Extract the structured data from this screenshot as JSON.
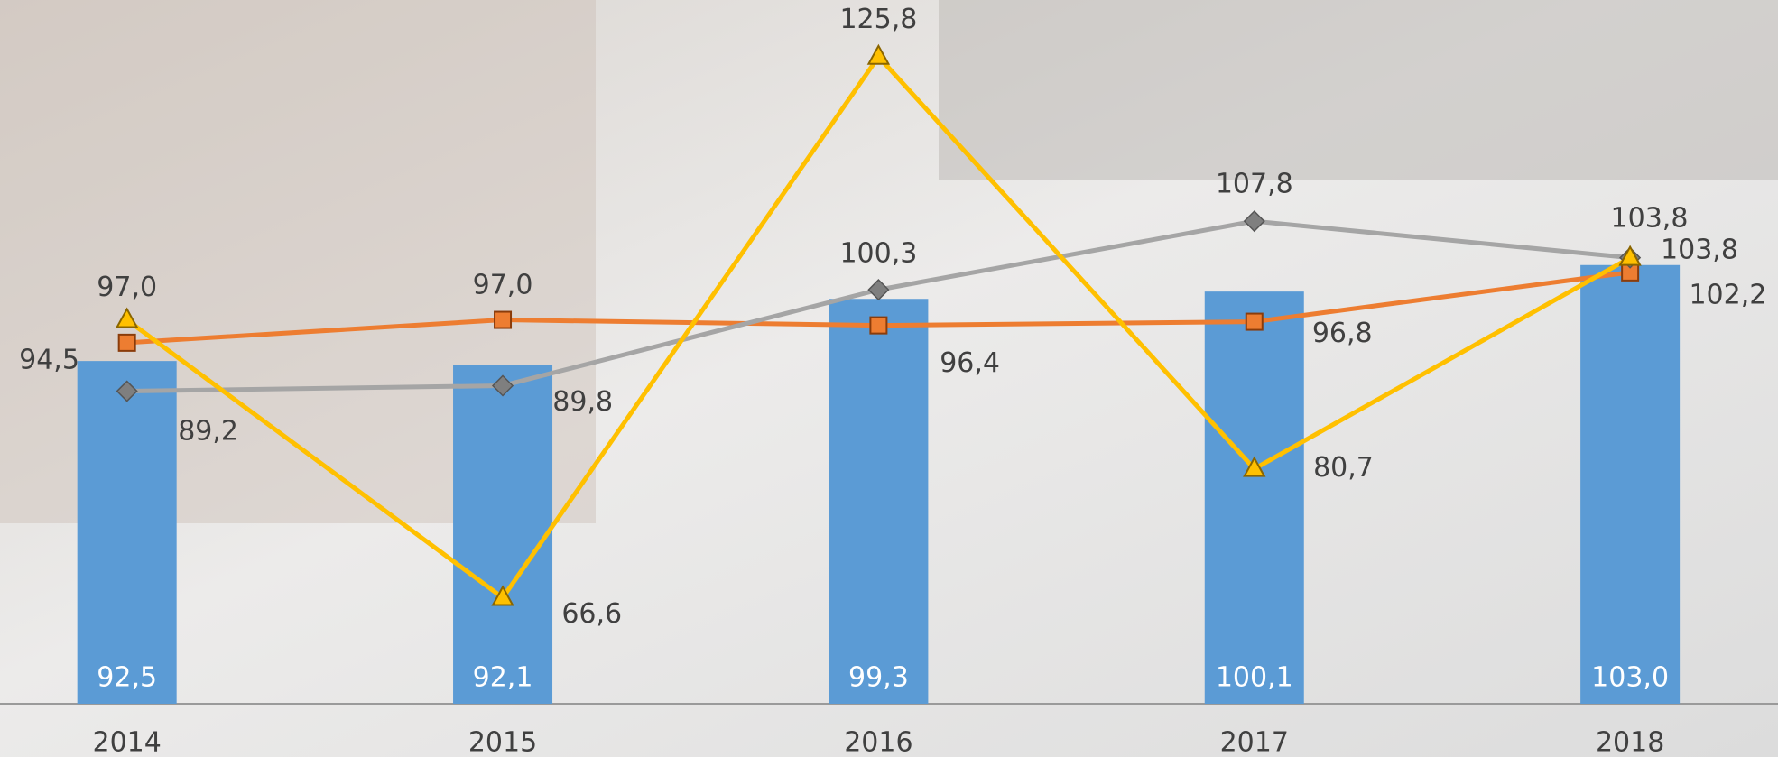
{
  "chart_data": {
    "type": "bar",
    "categories": [
      "2014",
      "2015",
      "2016",
      "2017",
      "2018"
    ],
    "values": [
      92.5,
      92.1,
      99.3,
      100.1,
      103.0
    ],
    "value_labels": [
      "92,5",
      "92,1",
      "99,3",
      "100,1",
      "103,0"
    ],
    "color": "#5b9bd5",
    "ylim": [
      55,
      132
    ],
    "series": [
      {
        "type": "line",
        "color": "#ed7d31",
        "marker": "square",
        "values": [
          94.5,
          97.0,
          96.4,
          96.8,
          102.2
        ],
        "value_labels": [
          "94,5",
          "97,0",
          "96,4",
          "96,8",
          "102,2"
        ]
      },
      {
        "type": "line",
        "color": "#a5a5a5",
        "marker": "diamond",
        "values": [
          89.2,
          89.8,
          100.3,
          107.8,
          103.8
        ],
        "value_labels": [
          "89,2",
          "89,8",
          "100,3",
          "107,8",
          "103,8"
        ]
      },
      {
        "type": "line",
        "color": "#ffc000",
        "marker": "triangle",
        "values": [
          97.0,
          66.6,
          125.8,
          80.7,
          103.8
        ],
        "value_labels": [
          "97,0",
          "66,6",
          "125,8",
          "80,7",
          "103,8"
        ]
      }
    ]
  }
}
